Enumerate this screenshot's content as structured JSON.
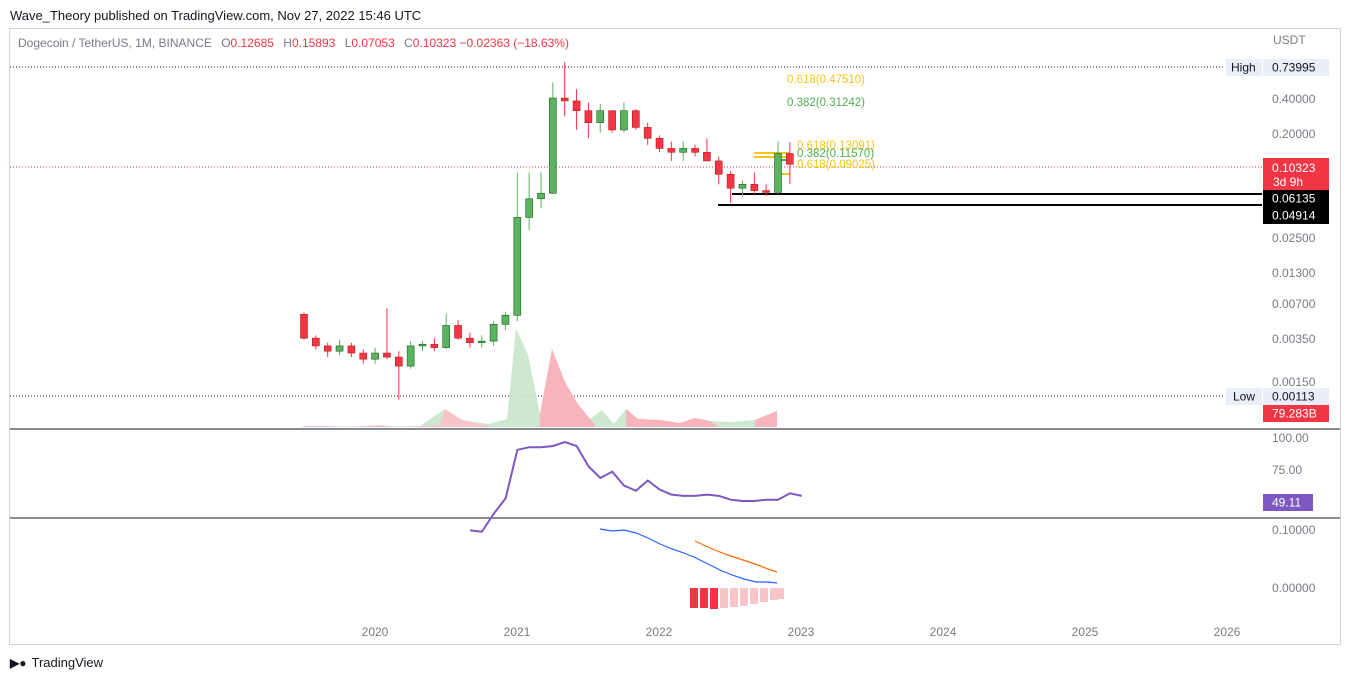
{
  "header": {
    "published": "Wave_Theory published on TradingView.com, Nov 27, 2022 15:46 UTC"
  },
  "legend": {
    "symbol": "Dogecoin / TetherUS, 1M, BINANCE",
    "o_label": "O",
    "o": "0.12685",
    "h_label": "H",
    "h": "0.15893",
    "l_label": "L",
    "l": "0.07053",
    "c_label": "C",
    "c": "0.10323",
    "change": "−0.02363 (−18.63%)"
  },
  "price_axis": {
    "currency": "USDT",
    "ticks": [
      "0.40000",
      "0.20000",
      "0.02500",
      "0.01300",
      "0.00700",
      "0.00350",
      "0.00150"
    ],
    "high_label": "High",
    "high_value": "0.73995",
    "low_label": "Low",
    "low_value": "0.00113",
    "last_price": "0.10323",
    "countdown": "3d 9h",
    "level_1": "0.06135",
    "level_2": "0.04914",
    "volume_tag": "79.283B"
  },
  "fib_levels": [
    {
      "text": "0.618(0.47510)",
      "color": "#f5c518"
    },
    {
      "text": "0.382(0.31242)",
      "color": "#4caf50"
    },
    {
      "text": "0.618(0.13091)",
      "color": "#f5c518"
    },
    {
      "text": "0.382(0.11570)",
      "color": "#4caf50"
    },
    {
      "text": "0.618(0.09025)",
      "color": "#f5c518"
    }
  ],
  "rsi": {
    "ticks": [
      "100.00",
      "75.00"
    ],
    "value": "49.11",
    "color": "#7e57c2",
    "values": [
      27,
      26,
      40,
      52,
      90,
      92,
      92,
      93,
      96,
      93,
      77,
      68,
      73,
      62,
      58,
      66,
      59,
      55,
      54,
      54,
      55,
      54,
      51,
      50,
      50,
      51,
      51,
      56,
      54
    ]
  },
  "macd": {
    "ticks": [
      "0.10000",
      "0.00000"
    ],
    "macd_color": "#2962ff",
    "signal_color": "#ff6d00"
  },
  "time_axis": {
    "labels": [
      "2020",
      "2021",
      "2022",
      "2023",
      "2024",
      "2025",
      "2026"
    ]
  },
  "colors": {
    "up": "#26a69a",
    "up_body": "#5bb35f",
    "down": "#f23645"
  },
  "chart_data": {
    "type": "candlestick",
    "title": "Dogecoin / TetherUS, 1M, BINANCE",
    "yscale": "log",
    "ylim": [
      0.0009,
      0.9
    ],
    "candles": [
      {
        "o": 0.0057,
        "h": 0.0059,
        "l": 0.0035,
        "c": 0.0036
      },
      {
        "o": 0.0036,
        "h": 0.0038,
        "l": 0.0029,
        "c": 0.0031
      },
      {
        "o": 0.0031,
        "h": 0.0033,
        "l": 0.0025,
        "c": 0.0028
      },
      {
        "o": 0.0028,
        "h": 0.0035,
        "l": 0.0026,
        "c": 0.0031
      },
      {
        "o": 0.0031,
        "h": 0.0033,
        "l": 0.0025,
        "c": 0.0027
      },
      {
        "o": 0.0027,
        "h": 0.0029,
        "l": 0.0022,
        "c": 0.0024
      },
      {
        "o": 0.0024,
        "h": 0.003,
        "l": 0.0022,
        "c": 0.0027
      },
      {
        "o": 0.0027,
        "h": 0.0064,
        "l": 0.0024,
        "c": 0.0025
      },
      {
        "o": 0.0025,
        "h": 0.0028,
        "l": 0.0011,
        "c": 0.0021
      },
      {
        "o": 0.0021,
        "h": 0.0034,
        "l": 0.002,
        "c": 0.0031
      },
      {
        "o": 0.0031,
        "h": 0.0034,
        "l": 0.0028,
        "c": 0.0032
      },
      {
        "o": 0.0032,
        "h": 0.0036,
        "l": 0.0028,
        "c": 0.003
      },
      {
        "o": 0.003,
        "h": 0.0058,
        "l": 0.0029,
        "c": 0.0046
      },
      {
        "o": 0.0046,
        "h": 0.0051,
        "l": 0.0035,
        "c": 0.0036
      },
      {
        "o": 0.0036,
        "h": 0.004,
        "l": 0.003,
        "c": 0.0033
      },
      {
        "o": 0.0033,
        "h": 0.0038,
        "l": 0.003,
        "c": 0.0034
      },
      {
        "o": 0.0034,
        "h": 0.005,
        "l": 0.0031,
        "c": 0.0047
      },
      {
        "o": 0.0047,
        "h": 0.006,
        "l": 0.0042,
        "c": 0.0056
      },
      {
        "o": 0.0056,
        "h": 0.088,
        "l": 0.005,
        "c": 0.037
      },
      {
        "o": 0.037,
        "h": 0.088,
        "l": 0.029,
        "c": 0.053
      },
      {
        "o": 0.053,
        "h": 0.088,
        "l": 0.044,
        "c": 0.059
      },
      {
        "o": 0.059,
        "h": 0.5,
        "l": 0.058,
        "c": 0.37
      },
      {
        "o": 0.37,
        "h": 0.74,
        "l": 0.26,
        "c": 0.35
      },
      {
        "o": 0.35,
        "h": 0.44,
        "l": 0.2,
        "c": 0.29
      },
      {
        "o": 0.29,
        "h": 0.34,
        "l": 0.17,
        "c": 0.23
      },
      {
        "o": 0.23,
        "h": 0.33,
        "l": 0.19,
        "c": 0.29
      },
      {
        "o": 0.29,
        "h": 0.29,
        "l": 0.19,
        "c": 0.2
      },
      {
        "o": 0.2,
        "h": 0.34,
        "l": 0.19,
        "c": 0.29
      },
      {
        "o": 0.29,
        "h": 0.3,
        "l": 0.2,
        "c": 0.21
      },
      {
        "o": 0.21,
        "h": 0.23,
        "l": 0.15,
        "c": 0.17
      },
      {
        "o": 0.17,
        "h": 0.18,
        "l": 0.13,
        "c": 0.14
      },
      {
        "o": 0.14,
        "h": 0.16,
        "l": 0.11,
        "c": 0.13
      },
      {
        "o": 0.13,
        "h": 0.16,
        "l": 0.11,
        "c": 0.14
      },
      {
        "o": 0.14,
        "h": 0.15,
        "l": 0.12,
        "c": 0.13
      },
      {
        "o": 0.13,
        "h": 0.17,
        "l": 0.11,
        "c": 0.11
      },
      {
        "o": 0.11,
        "h": 0.12,
        "l": 0.07,
        "c": 0.085
      },
      {
        "o": 0.085,
        "h": 0.09,
        "l": 0.0491,
        "c": 0.065
      },
      {
        "o": 0.065,
        "h": 0.075,
        "l": 0.055,
        "c": 0.07
      },
      {
        "o": 0.07,
        "h": 0.088,
        "l": 0.058,
        "c": 0.062
      },
      {
        "o": 0.062,
        "h": 0.07,
        "l": 0.056,
        "c": 0.06
      },
      {
        "o": 0.06,
        "h": 0.16,
        "l": 0.058,
        "c": 0.1268
      },
      {
        "o": 0.1268,
        "h": 0.1589,
        "l": 0.0705,
        "c": 0.1032
      }
    ]
  }
}
